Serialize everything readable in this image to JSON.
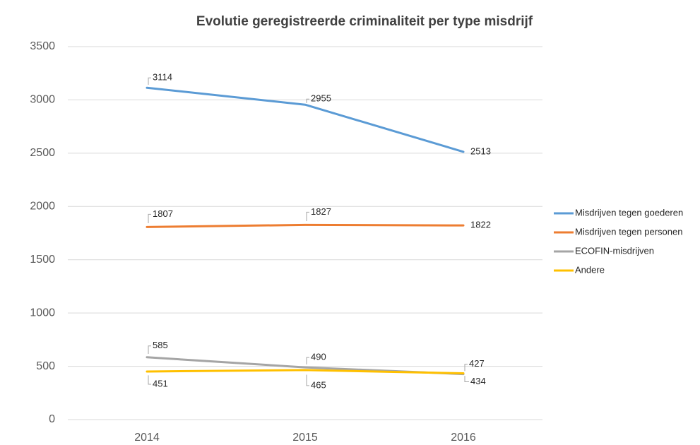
{
  "chart_data": {
    "type": "line",
    "title": "Evolutie geregistreerde criminaliteit per type misdrijf",
    "categories": [
      "2014",
      "2015",
      "2016"
    ],
    "series": [
      {
        "name": "Misdrijven tegen goederen",
        "color": "#5b9bd5",
        "values": [
          3114,
          2955,
          2513
        ]
      },
      {
        "name": "Misdrijven tegen personen",
        "color": "#ed7d31",
        "values": [
          1807,
          1827,
          1822
        ]
      },
      {
        "name": "ECOFIN-misdrijven",
        "color": "#a5a5a5",
        "values": [
          585,
          490,
          427
        ]
      },
      {
        "name": "Andere",
        "color": "#ffc000",
        "values": [
          451,
          465,
          434
        ]
      }
    ],
    "ylim": [
      0,
      3500
    ],
    "yticks": [
      0,
      500,
      1000,
      1500,
      2000,
      2500,
      3000,
      3500
    ],
    "grid": true,
    "legend": "right"
  }
}
